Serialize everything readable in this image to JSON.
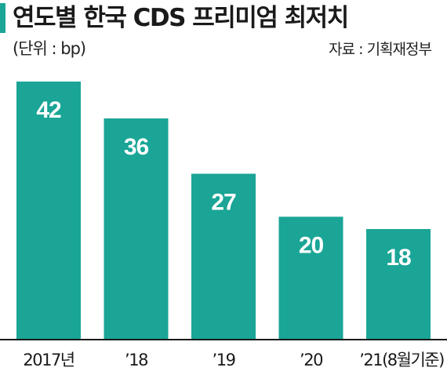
{
  "chart_data": {
    "type": "bar",
    "title": "연도별 한국 CDS 프리미엄 최저치",
    "unit_label": "(단위 : bp)",
    "source": "자료 : 기획재정부",
    "categories": [
      "2017년",
      "’18",
      "’19",
      "’20",
      "’21(8월기준)"
    ],
    "values": [
      42,
      36,
      27,
      20,
      18
    ],
    "ylim": [
      0,
      45
    ],
    "grid": false,
    "legend": "none",
    "bar_color": "#1aa596",
    "accent_color": "#1aa596"
  }
}
